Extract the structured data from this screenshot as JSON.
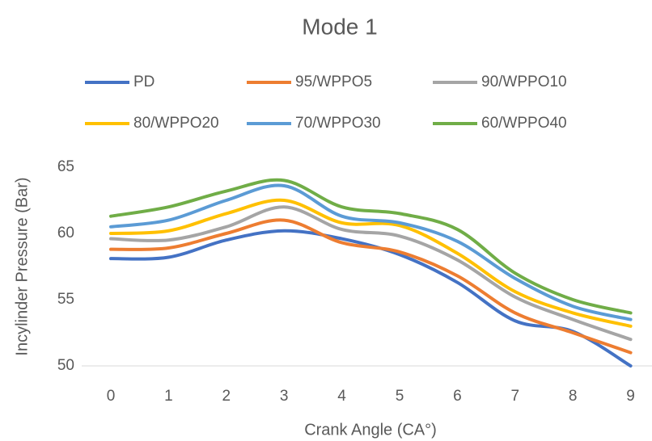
{
  "chart_data": {
    "type": "line",
    "title": "Mode 1",
    "x_label": "Crank Angle (CA°)",
    "y_label": "Incylinder Pressure (Bar)",
    "categories": [
      "0",
      "1",
      "2",
      "3",
      "4",
      "5",
      "6",
      "7",
      "8",
      "9"
    ],
    "ylim": [
      50,
      65
    ],
    "yticks": [
      50,
      55,
      60,
      65
    ],
    "grid": false,
    "smooth": true,
    "legend": "top",
    "series": [
      {
        "name": "PD",
        "color": "#4472c4",
        "values": [
          58.1,
          58.2,
          59.5,
          60.2,
          59.6,
          58.4,
          56.3,
          53.4,
          52.6,
          50.0
        ]
      },
      {
        "name": "95/WPPO5",
        "color": "#ed7d31",
        "values": [
          58.8,
          58.9,
          60.0,
          61.0,
          59.3,
          58.6,
          56.8,
          54.0,
          52.5,
          51.0
        ]
      },
      {
        "name": "90/WPPO10",
        "color": "#a5a5a5",
        "values": [
          59.6,
          59.5,
          60.5,
          62.0,
          60.3,
          59.8,
          58.0,
          55.2,
          53.5,
          52.0
        ]
      },
      {
        "name": "80/WPPO20",
        "color": "#ffc000",
        "values": [
          60.0,
          60.2,
          61.5,
          62.5,
          60.8,
          60.6,
          58.5,
          55.6,
          54.0,
          53.0
        ]
      },
      {
        "name": "70/WPPO30",
        "color": "#5b9bd5",
        "values": [
          60.5,
          61.0,
          62.5,
          63.6,
          61.3,
          60.8,
          59.4,
          56.6,
          54.5,
          53.5
        ]
      },
      {
        "name": "60/WPPO40",
        "color": "#70ad47",
        "values": [
          61.3,
          62.0,
          63.2,
          64.0,
          62.0,
          61.5,
          60.3,
          57.0,
          55.0,
          54.0
        ]
      }
    ]
  }
}
